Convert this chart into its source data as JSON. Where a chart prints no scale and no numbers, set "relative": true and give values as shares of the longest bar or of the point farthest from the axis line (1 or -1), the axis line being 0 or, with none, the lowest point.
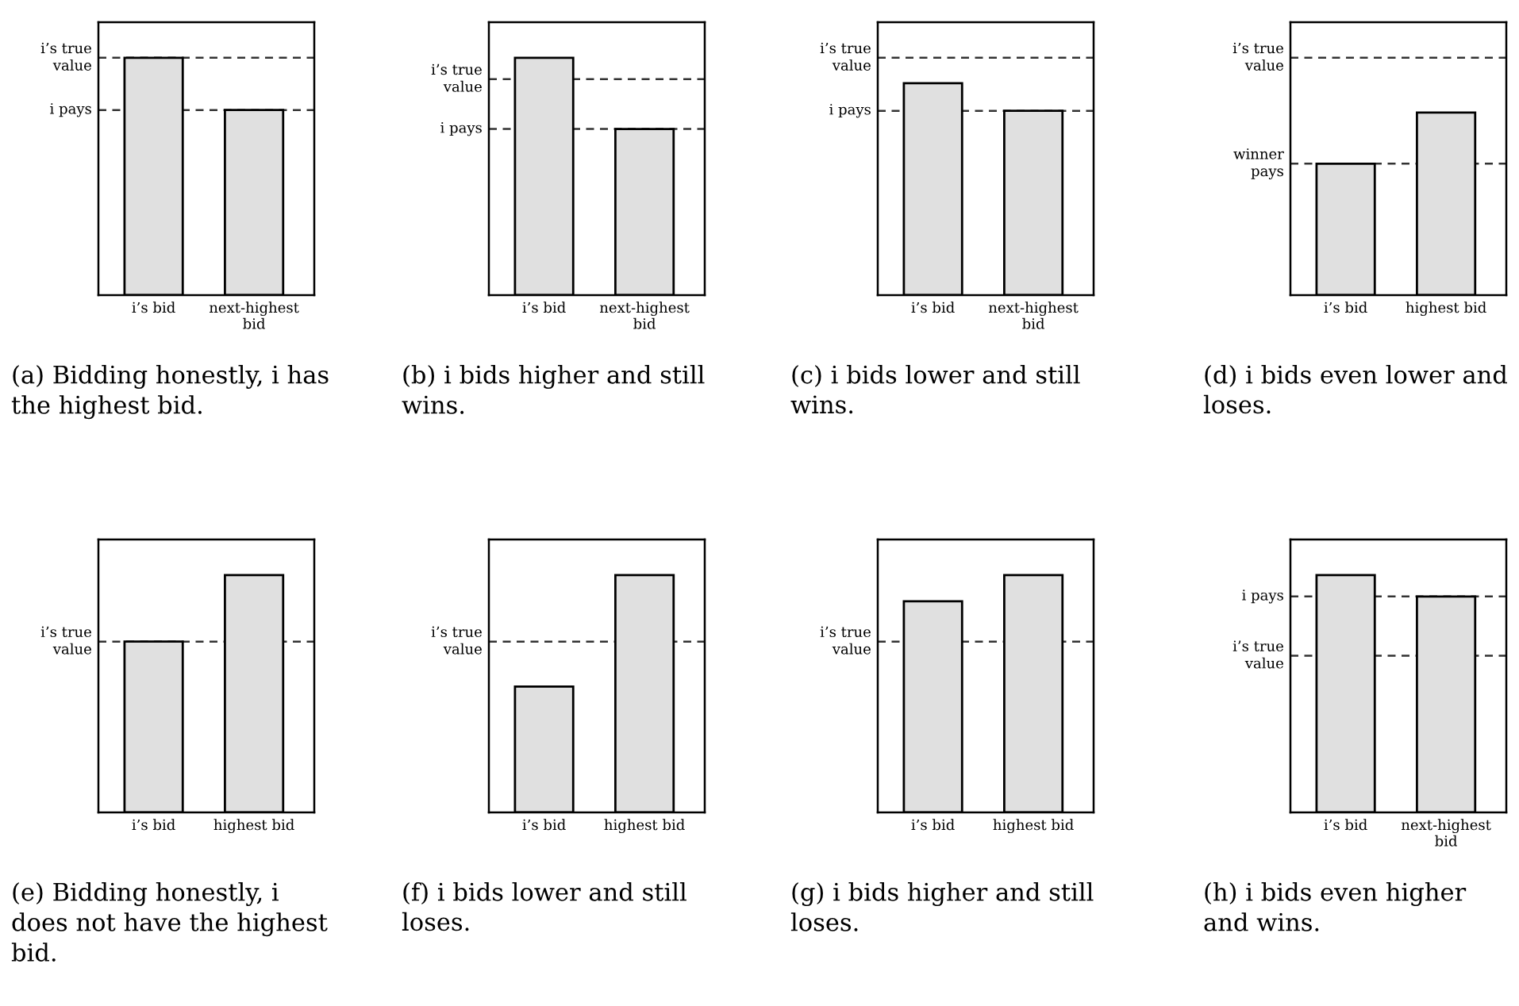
{
  "chart_data": [
    {
      "type": "bar",
      "title": "(a) Bidding honestly, i has the highest bid.",
      "categories": [
        "i’s bid",
        "next-highest bid"
      ],
      "values": [
        1,
        0.78
      ],
      "color": "#e0e0e0",
      "relative": true,
      "ref_lines": [
        {
          "axis": "y",
          "value": 1,
          "label": "i’s true value",
          "line_style": "dashed",
          "color": "#333333"
        },
        {
          "axis": "y",
          "value": 0.78,
          "label": "i pays",
          "line_style": "dashed",
          "color": "#333333"
        }
      ]
    },
    {
      "type": "bar",
      "title": "(b) i bids higher and still wins.",
      "categories": [
        "i’s bid",
        "next-highest bid"
      ],
      "values": [
        1,
        0.7
      ],
      "color": "#e0e0e0",
      "relative": true,
      "ref_lines": [
        {
          "axis": "y",
          "value": 0.91,
          "label": "i’s true value",
          "line_style": "dashed",
          "color": "#333333"
        },
        {
          "axis": "y",
          "value": 0.7,
          "label": "i pays",
          "line_style": "dashed",
          "color": "#333333"
        }
      ]
    },
    {
      "type": "bar",
      "title": "(c) i bids lower and still wins.",
      "categories": [
        "i’s bid",
        "next-highest bid"
      ],
      "values": [
        1,
        0.87
      ],
      "color": "#e0e0e0",
      "relative": true,
      "ref_lines": [
        {
          "axis": "y",
          "value": 1.12,
          "label": "i’s true value",
          "line_style": "dashed",
          "color": "#333333"
        },
        {
          "axis": "y",
          "value": 0.87,
          "label": "i pays",
          "line_style": "dashed",
          "color": "#333333"
        }
      ]
    },
    {
      "type": "bar",
      "title": "(d) i bids even lower and loses.",
      "categories": [
        "i’s bid",
        "highest bid"
      ],
      "values": [
        0.72,
        1
      ],
      "color": "#e0e0e0",
      "relative": true,
      "ref_lines": [
        {
          "axis": "y",
          "value": 1.3,
          "label": "i’s true value",
          "line_style": "dashed",
          "color": "#333333"
        },
        {
          "axis": "y",
          "value": 0.72,
          "label": "winner pays",
          "line_style": "dashed",
          "color": "#333333"
        }
      ]
    },
    {
      "type": "bar",
      "title": "(e) Bidding honestly, i does not have the highest bid.",
      "categories": [
        "i’s bid",
        "highest bid"
      ],
      "values": [
        0.72,
        1
      ],
      "color": "#e0e0e0",
      "relative": true,
      "ref_lines": [
        {
          "axis": "y",
          "value": 0.72,
          "label": "i’s true value",
          "line_style": "dashed",
          "color": "#333333"
        }
      ]
    },
    {
      "type": "bar",
      "title": "(f) i bids lower and still loses.",
      "categories": [
        "i’s bid",
        "highest bid"
      ],
      "values": [
        0.53,
        1
      ],
      "color": "#e0e0e0",
      "relative": true,
      "ref_lines": [
        {
          "axis": "y",
          "value": 0.72,
          "label": "i’s true value",
          "line_style": "dashed",
          "color": "#333333"
        }
      ]
    },
    {
      "type": "bar",
      "title": "(g) i bids higher and still loses.",
      "categories": [
        "i’s bid",
        "highest bid"
      ],
      "values": [
        0.89,
        1
      ],
      "color": "#e0e0e0",
      "relative": true,
      "ref_lines": [
        {
          "axis": "y",
          "value": 0.72,
          "label": "i’s true value",
          "line_style": "dashed",
          "color": "#333333"
        }
      ]
    },
    {
      "type": "bar",
      "title": "(h) i bids even higher and wins.",
      "categories": [
        "i’s bid",
        "next-highest bid"
      ],
      "values": [
        1,
        0.91
      ],
      "color": "#e0e0e0",
      "relative": true,
      "ref_lines": [
        {
          "axis": "y",
          "value": 0.91,
          "label": "i pays",
          "line_style": "dashed",
          "color": "#333333"
        },
        {
          "axis": "y",
          "value": 0.66,
          "label": "i’s true value",
          "line_style": "dashed",
          "color": "#333333"
        }
      ]
    }
  ]
}
